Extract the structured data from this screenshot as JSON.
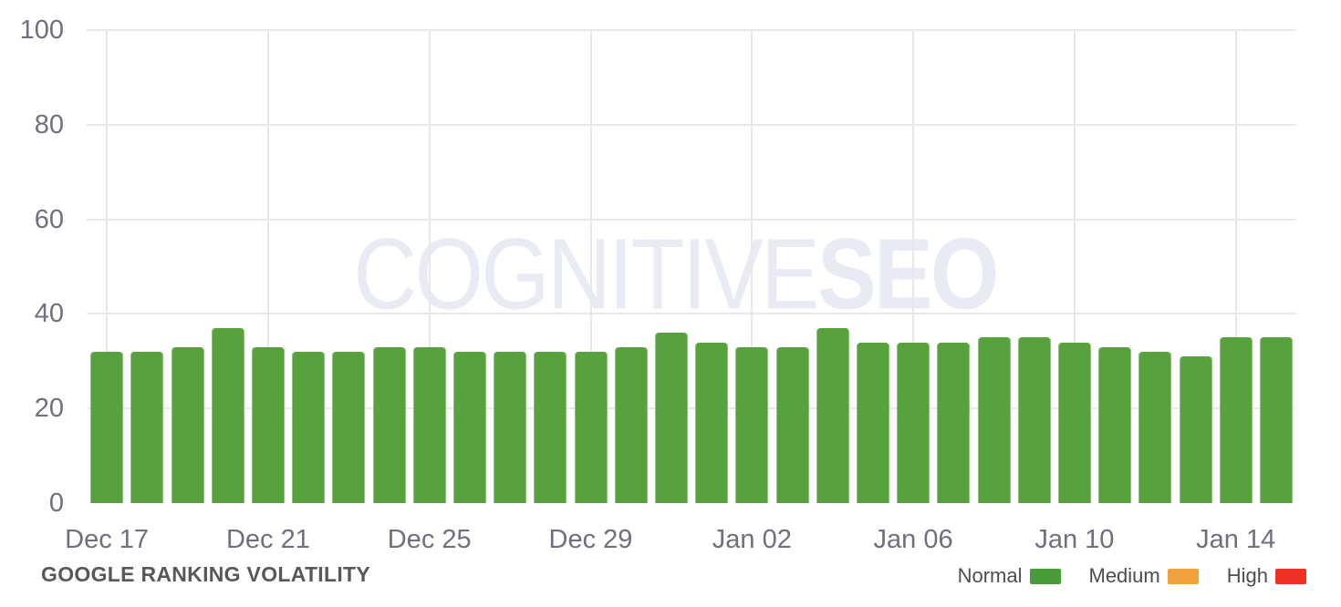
{
  "watermark": {
    "light": "COGNITIVE",
    "bold": "SEO",
    "color": "#e8eaf4"
  },
  "footer": {
    "title": "GOOGLE RANKING VOLATILITY"
  },
  "legend": [
    {
      "label": "Normal",
      "color": "#4a9c3a"
    },
    {
      "label": "Medium",
      "color": "#f0a13e"
    },
    {
      "label": "High",
      "color": "#ee3124"
    }
  ],
  "chart_data": {
    "type": "bar",
    "title": "GOOGLE RANKING VOLATILITY",
    "series_name": "Normal",
    "categories": [
      "Dec 17",
      "Dec 18",
      "Dec 19",
      "Dec 20",
      "Dec 21",
      "Dec 22",
      "Dec 23",
      "Dec 24",
      "Dec 25",
      "Dec 26",
      "Dec 27",
      "Dec 28",
      "Dec 29",
      "Dec 30",
      "Dec 31",
      "Jan 01",
      "Jan 02",
      "Jan 03",
      "Jan 04",
      "Jan 05",
      "Jan 06",
      "Jan 07",
      "Jan 08",
      "Jan 09",
      "Jan 10",
      "Jan 11",
      "Jan 12",
      "Jan 13",
      "Jan 14",
      "Jan 15"
    ],
    "values": [
      32,
      32,
      33,
      37,
      33,
      32,
      32,
      33,
      33,
      32,
      32,
      32,
      32,
      33,
      36,
      34,
      33,
      33,
      37,
      34,
      34,
      34,
      35,
      35,
      34,
      33,
      32,
      31,
      35,
      35
    ],
    "x_tick_labels": [
      "Dec 17",
      "Dec 21",
      "Dec 25",
      "Dec 29",
      "Jan 02",
      "Jan 06",
      "Jan 10",
      "Jan 14"
    ],
    "x_tick_every": 4,
    "y_ticks": [
      0,
      20,
      40,
      60,
      80,
      100
    ],
    "ylim": [
      0,
      100
    ],
    "grid": true,
    "legend_position": "bottom-right",
    "bar_color": "#57a23c",
    "gridline_color": "#e8e8ec",
    "axis_label_color": "#6f6f80"
  }
}
